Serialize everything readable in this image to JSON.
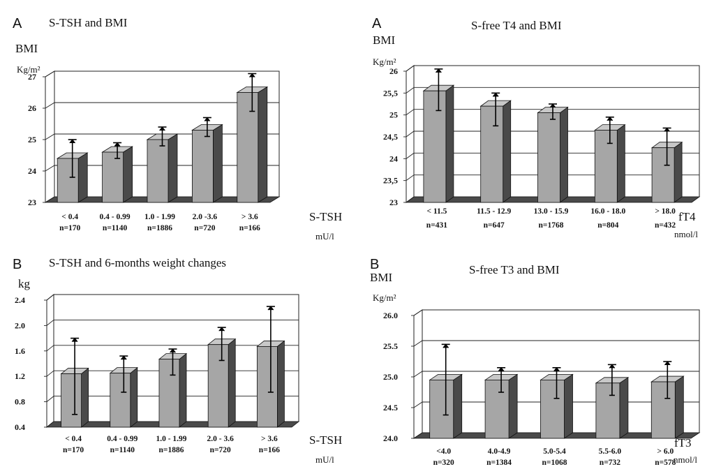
{
  "chart_data": [
    {
      "type": "bar",
      "panel": "A",
      "title": "S-TSH and BMI",
      "ylabel": "BMI",
      "yunit": "Kg/m²",
      "xlabel": "S-TSH",
      "xunit": "mU/l",
      "ylim": [
        23,
        27
      ],
      "yticks": [
        "23",
        "24",
        "25",
        "26",
        "27"
      ],
      "ytick_values": [
        23,
        24,
        25,
        26,
        27
      ],
      "categories": [
        "< 0.4",
        "0.4 - 0.99",
        "1.0 - 1.99",
        "2.0 -3.6",
        "> 3.6"
      ],
      "n": [
        "n=170",
        "n=1140",
        "n=1886",
        "n=720",
        "n=166"
      ],
      "values": [
        24.4,
        24.6,
        25.0,
        25.3,
        26.5
      ],
      "error_low": [
        23.8,
        24.4,
        24.8,
        25.1,
        25.9
      ],
      "error_high": [
        25.0,
        24.9,
        25.4,
        25.7,
        27.1
      ]
    },
    {
      "type": "bar",
      "panel": "A",
      "title": "S-free T4 and BMI",
      "ylabel": "BMI",
      "yunit": "Kg/m²",
      "xlabel": "fT4",
      "xunit": "nmol/l",
      "ylim": [
        23,
        26
      ],
      "yticks": [
        "23",
        "23,5",
        "24",
        "24,5",
        "25",
        "25,5",
        "26"
      ],
      "ytick_values": [
        23,
        23.5,
        24,
        24.5,
        25,
        25.5,
        26
      ],
      "categories": [
        "< 11.5",
        "11.5 - 12.9",
        "13.0 - 15.9",
        "16.0 - 18.0",
        "> 18.0"
      ],
      "n": [
        "n=431",
        "n=647",
        "n=1768",
        "n=804",
        "n=432"
      ],
      "values": [
        25.55,
        25.2,
        25.05,
        24.65,
        24.25
      ],
      "error_low": [
        25.1,
        24.75,
        24.9,
        24.35,
        23.85
      ],
      "error_high": [
        26.05,
        25.5,
        25.25,
        24.95,
        24.7
      ]
    },
    {
      "type": "bar",
      "panel": "B",
      "title": "S-TSH and 6-months weight changes",
      "ylabel": "kg",
      "yunit": "",
      "xlabel": "S-TSH",
      "xunit": "mU/l",
      "ylim": [
        0.4,
        2.4
      ],
      "yticks": [
        "0.4",
        "0.8",
        "1.2",
        "1.6",
        "2.0",
        "2.4"
      ],
      "ytick_values": [
        0.4,
        0.8,
        1.2,
        1.6,
        2.0,
        2.4
      ],
      "categories": [
        "< 0.4",
        "0.4 - 0.99",
        "1.0 - 1.99",
        "2.0 - 3.6",
        "> 3.6"
      ],
      "n": [
        "n=170",
        "n=1140",
        "n=1886",
        "n=720",
        "n=166"
      ],
      "values": [
        1.24,
        1.25,
        1.47,
        1.7,
        1.67
      ],
      "error_low": [
        0.6,
        0.95,
        1.22,
        1.45,
        0.95
      ],
      "error_high": [
        1.8,
        1.52,
        1.63,
        1.97,
        2.3
      ]
    },
    {
      "type": "bar",
      "panel": "B",
      "title": "S-free T3 and BMI",
      "ylabel": "BMI",
      "yunit": "Kg/m²",
      "xlabel": "fT3",
      "xunit": "nmol/l",
      "ylim": [
        24.0,
        26.0
      ],
      "yticks": [
        "24.0",
        "24.5",
        "25.0",
        "25.5",
        "26.0"
      ],
      "ytick_values": [
        24.0,
        24.5,
        25.0,
        25.5,
        26.0
      ],
      "categories": [
        "<4.0",
        "4.0-4.9",
        "5.0-5.4",
        "5.5-6.0",
        "> 6.0"
      ],
      "n": [
        "n=320",
        "n=1384",
        "n=1068",
        "n=732",
        "n=578"
      ],
      "values": [
        24.95,
        24.95,
        24.95,
        24.9,
        24.92
      ],
      "error_low": [
        24.38,
        24.75,
        24.65,
        24.7,
        24.65
      ],
      "error_high": [
        25.53,
        25.15,
        25.15,
        25.2,
        25.25
      ]
    }
  ]
}
